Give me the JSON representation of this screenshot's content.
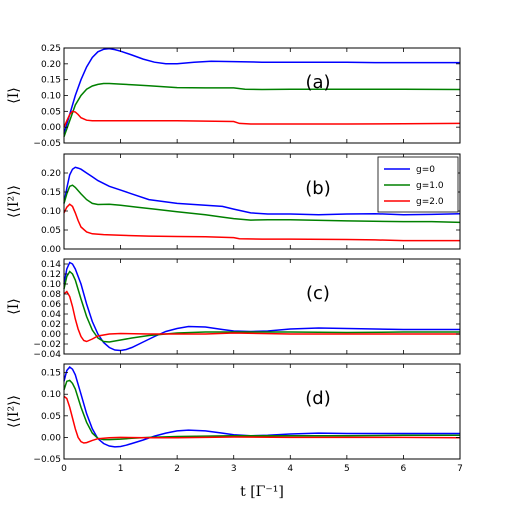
{
  "chart_data": {
    "type": "line",
    "xlabel": "t  [Γ⁻¹]",
    "xlim": [
      0,
      7
    ],
    "xticks": [
      0,
      1,
      2,
      3,
      4,
      5,
      6,
      7
    ],
    "legend": {
      "placement": "top-right of panel (b)",
      "entries": [
        "g=0",
        "g=1.0",
        "g=2.0"
      ]
    },
    "colors": {
      "g=0": "#0000ff",
      "g=1.0": "#008000",
      "g=2.0": "#ff0000"
    },
    "grid": false,
    "panels": [
      {
        "tag": "(a)",
        "ylabel": "⟨I⟩",
        "ylim": [
          -0.05,
          0.25
        ],
        "yticks": [
          "−0.05",
          "0.00",
          "0.05",
          "0.10",
          "0.15",
          "0.20",
          "0.25"
        ],
        "ytick_values": [
          -0.05,
          0,
          0.05,
          0.1,
          0.15,
          0.2,
          0.25
        ],
        "series": [
          {
            "name": "g=0",
            "x": [
              0,
              0.1,
              0.2,
              0.3,
              0.4,
              0.5,
              0.6,
              0.7,
              0.8,
              0.9,
              1.0,
              1.2,
              1.4,
              1.6,
              1.8,
              2.0,
              2.3,
              2.6,
              3.0,
              3.5,
              4.0,
              4.5,
              5.0,
              5.5,
              6.0,
              6.5,
              7.0
            ],
            "y": [
              -0.02,
              0.04,
              0.1,
              0.15,
              0.19,
              0.22,
              0.238,
              0.246,
              0.248,
              0.245,
              0.24,
              0.228,
              0.215,
              0.205,
              0.2,
              0.2,
              0.205,
              0.208,
              0.207,
              0.205,
              0.205,
              0.205,
              0.205,
              0.204,
              0.204,
              0.204,
              0.204
            ]
          },
          {
            "name": "g=1.0",
            "x": [
              0,
              0.1,
              0.2,
              0.3,
              0.4,
              0.5,
              0.6,
              0.7,
              0.8,
              1.0,
              1.2,
              1.5,
              2.0,
              2.5,
              3.0,
              3.2,
              3.5,
              4.0,
              5.0,
              6.0,
              7.0
            ],
            "y": [
              -0.03,
              0.02,
              0.07,
              0.1,
              0.12,
              0.13,
              0.135,
              0.138,
              0.138,
              0.136,
              0.134,
              0.131,
              0.125,
              0.124,
              0.124,
              0.12,
              0.119,
              0.12,
              0.12,
              0.12,
              0.119
            ]
          },
          {
            "name": "g=2.0",
            "x": [
              0,
              0.05,
              0.1,
              0.15,
              0.2,
              0.25,
              0.3,
              0.4,
              0.5,
              0.6,
              0.8,
              1.0,
              1.5,
              2.0,
              2.5,
              3.0,
              3.1,
              3.3,
              4.0,
              5.0,
              6.0,
              7.0
            ],
            "y": [
              0.0,
              0.02,
              0.04,
              0.05,
              0.048,
              0.04,
              0.03,
              0.022,
              0.02,
              0.02,
              0.02,
              0.02,
              0.02,
              0.02,
              0.019,
              0.018,
              0.012,
              0.01,
              0.01,
              0.01,
              0.011,
              0.012
            ]
          }
        ]
      },
      {
        "tag": "(b)",
        "ylabel": "⟨⟨I²⟩⟩",
        "ylim": [
          0,
          0.25
        ],
        "yticks": [
          "0.00",
          "0.05",
          "0.10",
          "0.15",
          "0.20"
        ],
        "ytick_values": [
          0,
          0.05,
          0.1,
          0.15,
          0.2
        ],
        "series": [
          {
            "name": "g=0",
            "x": [
              0,
              0.05,
              0.1,
              0.15,
              0.2,
              0.25,
              0.3,
              0.4,
              0.5,
              0.6,
              0.8,
              1.0,
              1.2,
              1.5,
              2.0,
              2.5,
              2.8,
              3.0,
              3.3,
              3.6,
              4.0,
              4.5,
              5.0,
              5.5,
              6.0,
              6.5,
              7.0
            ],
            "y": [
              0.12,
              0.16,
              0.195,
              0.21,
              0.215,
              0.213,
              0.21,
              0.2,
              0.19,
              0.18,
              0.165,
              0.155,
              0.145,
              0.13,
              0.12,
              0.115,
              0.112,
              0.105,
              0.095,
              0.092,
              0.092,
              0.09,
              0.092,
              0.093,
              0.09,
              0.091,
              0.093
            ]
          },
          {
            "name": "g=1.0",
            "x": [
              0,
              0.05,
              0.1,
              0.15,
              0.2,
              0.3,
              0.4,
              0.5,
              0.6,
              0.8,
              1.0,
              1.3,
              1.6,
              2.0,
              2.5,
              2.8,
              3.0,
              3.3,
              3.6,
              4.0,
              5.0,
              6.0,
              6.5,
              7.0
            ],
            "y": [
              0.12,
              0.145,
              0.165,
              0.168,
              0.162,
              0.145,
              0.13,
              0.12,
              0.117,
              0.118,
              0.115,
              0.11,
              0.105,
              0.098,
              0.09,
              0.084,
              0.08,
              0.076,
              0.077,
              0.077,
              0.074,
              0.072,
              0.072,
              0.07
            ]
          },
          {
            "name": "g=2.0",
            "x": [
              0,
              0.05,
              0.1,
              0.15,
              0.2,
              0.25,
              0.3,
              0.4,
              0.5,
              0.7,
              1.0,
              1.5,
              2.0,
              2.5,
              3.0,
              3.1,
              3.5,
              4.0,
              5.0,
              5.5,
              6.0,
              6.5,
              7.0
            ],
            "y": [
              0.095,
              0.11,
              0.118,
              0.112,
              0.095,
              0.075,
              0.058,
              0.045,
              0.04,
              0.038,
              0.036,
              0.034,
              0.033,
              0.032,
              0.03,
              0.027,
              0.026,
              0.026,
              0.025,
              0.024,
              0.022,
              0.022,
              0.022
            ]
          }
        ]
      },
      {
        "tag": "(c)",
        "ylabel": "⟨I⟩",
        "ylim": [
          -0.04,
          0.15
        ],
        "yticks": [
          "−0.04",
          "−0.02",
          "0.00",
          "0.02",
          "0.04",
          "0.06",
          "0.08",
          "0.10",
          "0.12",
          "0.14"
        ],
        "ytick_values": [
          -0.04,
          -0.02,
          0,
          0.02,
          0.04,
          0.06,
          0.08,
          0.1,
          0.12,
          0.14
        ],
        "series": [
          {
            "name": "g=0",
            "x": [
              0,
              0.05,
              0.1,
              0.15,
              0.2,
              0.3,
              0.4,
              0.5,
              0.6,
              0.7,
              0.8,
              0.9,
              1.0,
              1.1,
              1.2,
              1.4,
              1.6,
              1.8,
              2.0,
              2.2,
              2.5,
              2.8,
              3.0,
              3.3,
              3.6,
              4.0,
              4.5,
              5.0,
              5.5,
              6.0,
              6.5,
              7.0
            ],
            "y": [
              0.1,
              0.13,
              0.143,
              0.14,
              0.13,
              0.1,
              0.06,
              0.025,
              0.0,
              -0.017,
              -0.027,
              -0.032,
              -0.033,
              -0.031,
              -0.027,
              -0.016,
              -0.005,
              0.005,
              0.011,
              0.015,
              0.014,
              0.009,
              0.006,
              0.005,
              0.006,
              0.01,
              0.012,
              0.011,
              0.01,
              0.009,
              0.009,
              0.009
            ]
          },
          {
            "name": "g=1.0",
            "x": [
              0,
              0.05,
              0.1,
              0.15,
              0.2,
              0.3,
              0.4,
              0.5,
              0.6,
              0.7,
              0.8,
              1.0,
              1.2,
              1.5,
              2.0,
              2.5,
              3.0,
              3.5,
              4.0,
              5.0,
              6.0,
              7.0
            ],
            "y": [
              0.09,
              0.115,
              0.125,
              0.12,
              0.108,
              0.07,
              0.035,
              0.008,
              -0.008,
              -0.015,
              -0.016,
              -0.012,
              -0.008,
              -0.003,
              0.002,
              0.004,
              0.004,
              0.004,
              0.004,
              0.003,
              0.004,
              0.004
            ]
          },
          {
            "name": "g=2.0",
            "x": [
              0,
              0.05,
              0.1,
              0.15,
              0.2,
              0.25,
              0.3,
              0.35,
              0.4,
              0.5,
              0.6,
              0.8,
              1.0,
              1.5,
              2.0,
              2.5,
              3.0,
              4.0,
              5.0,
              6.0,
              7.0
            ],
            "y": [
              0.08,
              0.085,
              0.075,
              0.055,
              0.03,
              0.01,
              -0.005,
              -0.013,
              -0.015,
              -0.01,
              -0.004,
              0.0,
              0.001,
              0.0,
              0.0,
              0.0,
              0.002,
              0.0,
              0.0,
              0.0,
              0.0
            ]
          }
        ]
      },
      {
        "tag": "(d)",
        "ylabel": "⟨⟨I²⟩⟩",
        "ylim": [
          -0.05,
          0.17
        ],
        "yticks": [
          "−0.05",
          "0.00",
          "0.05",
          "0.10",
          "0.15"
        ],
        "ytick_values": [
          -0.05,
          0,
          0.05,
          0.1,
          0.15
        ],
        "series": [
          {
            "name": "g=0",
            "x": [
              0,
              0.05,
              0.1,
              0.15,
              0.2,
              0.3,
              0.4,
              0.5,
              0.6,
              0.7,
              0.8,
              0.9,
              1.0,
              1.1,
              1.2,
              1.4,
              1.6,
              1.8,
              2.0,
              2.2,
              2.5,
              2.8,
              3.0,
              3.3,
              3.6,
              4.0,
              4.5,
              5.0,
              6.0,
              7.0
            ],
            "y": [
              0.13,
              0.155,
              0.163,
              0.158,
              0.145,
              0.1,
              0.055,
              0.02,
              -0.003,
              -0.014,
              -0.02,
              -0.022,
              -0.021,
              -0.018,
              -0.014,
              -0.006,
              0.003,
              0.01,
              0.015,
              0.017,
              0.015,
              0.01,
              0.006,
              0.004,
              0.005,
              0.008,
              0.01,
              0.009,
              0.009,
              0.009
            ]
          },
          {
            "name": "g=1.0",
            "x": [
              0,
              0.05,
              0.1,
              0.15,
              0.2,
              0.3,
              0.4,
              0.5,
              0.6,
              0.7,
              0.8,
              1.0,
              1.2,
              1.5,
              2.0,
              2.5,
              3.0,
              3.5,
              4.0,
              5.0,
              6.0,
              7.0
            ],
            "y": [
              0.11,
              0.13,
              0.132,
              0.125,
              0.112,
              0.07,
              0.035,
              0.01,
              -0.002,
              -0.005,
              -0.005,
              -0.004,
              -0.002,
              0.0,
              0.002,
              0.003,
              0.004,
              0.004,
              0.004,
              0.004,
              0.005,
              0.005
            ]
          },
          {
            "name": "g=2.0",
            "x": [
              0,
              0.05,
              0.1,
              0.15,
              0.2,
              0.25,
              0.3,
              0.35,
              0.4,
              0.5,
              0.6,
              0.8,
              1.0,
              1.5,
              2.0,
              2.5,
              3.0,
              4.0,
              5.0,
              6.0,
              7.0
            ],
            "y": [
              0.095,
              0.09,
              0.07,
              0.045,
              0.02,
              0.0,
              -0.01,
              -0.013,
              -0.012,
              -0.007,
              -0.003,
              -0.001,
              0.0,
              -0.001,
              -0.001,
              0.0,
              0.001,
              0.0,
              0.0,
              0.0,
              -0.001
            ]
          }
        ]
      }
    ]
  }
}
